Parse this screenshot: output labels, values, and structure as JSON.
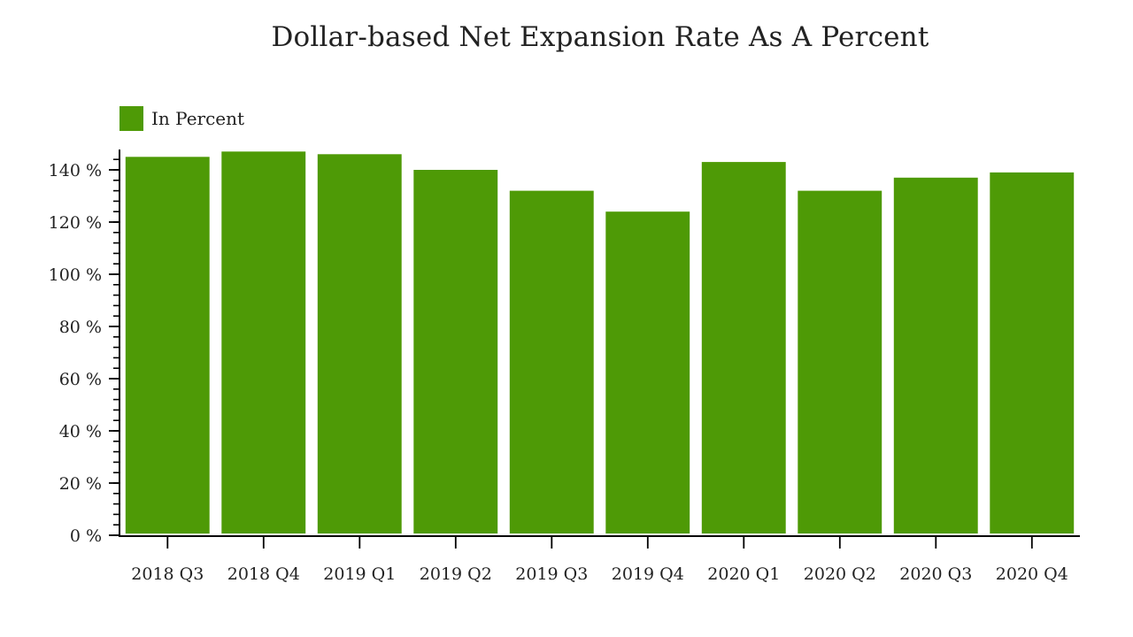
{
  "chart_data": {
    "type": "bar",
    "title": "Dollar-based Net Expansion Rate As A Percent",
    "categories": [
      "2018 Q3",
      "2018 Q4",
      "2019 Q1",
      "2019 Q2",
      "2019 Q3",
      "2019 Q4",
      "2020 Q1",
      "2020 Q2",
      "2020 Q3",
      "2020 Q4"
    ],
    "series": [
      {
        "name": "In Percent",
        "color": "#4e9a06",
        "values": [
          145,
          147,
          146,
          140,
          132,
          124,
          143,
          132,
          137,
          139
        ]
      }
    ],
    "xlabel": "",
    "ylabel": "",
    "ylim": [
      0,
      148
    ],
    "yticks": [
      0,
      20,
      40,
      60,
      80,
      100,
      120,
      140
    ],
    "ytick_suffix": " %",
    "grid": false,
    "legend_position": "top-left"
  }
}
